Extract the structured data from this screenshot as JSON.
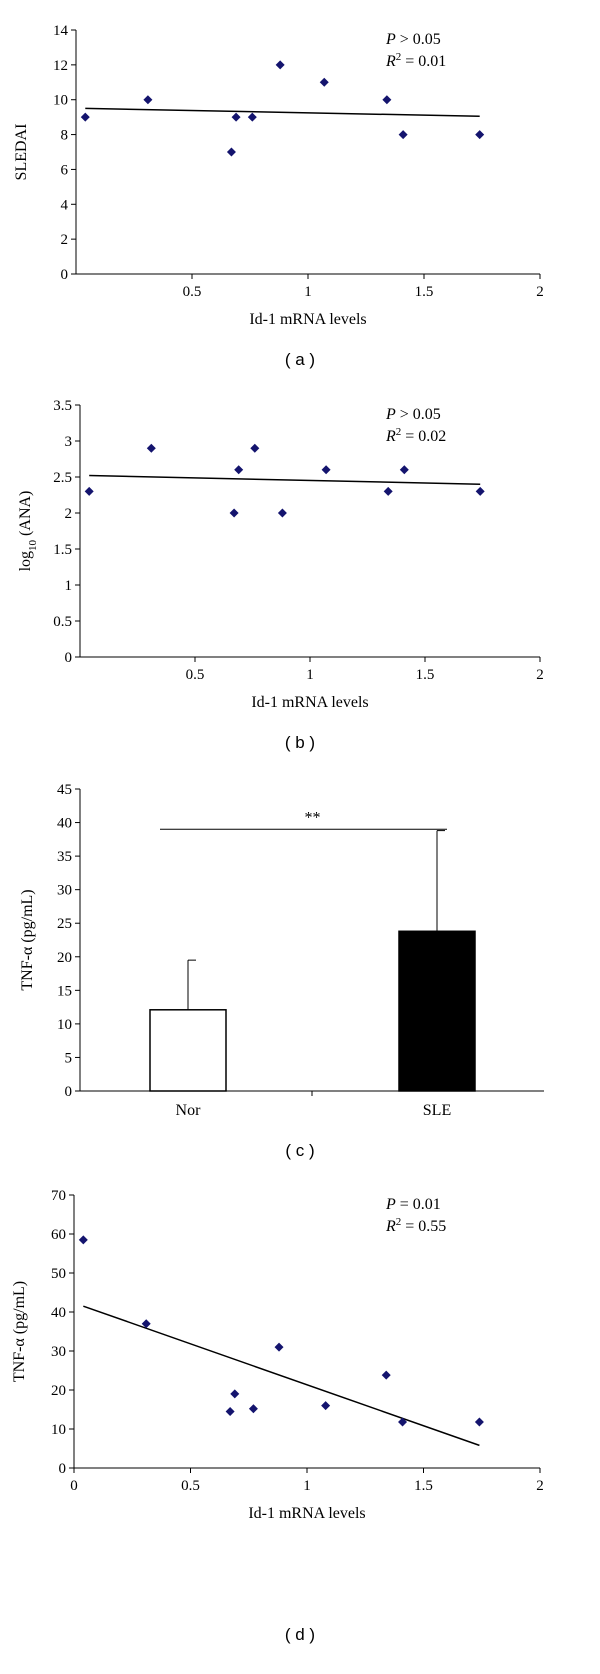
{
  "chart_data": [
    {
      "id": "a",
      "type": "scatter",
      "subcaption": "( a )",
      "xlabel": "Id-1 mRNA levels",
      "ylabel": "SLEDAI",
      "xlim": [
        0,
        2
      ],
      "ylim": [
        0,
        14
      ],
      "xticks": [
        "0.5",
        "1",
        "1.5",
        "2"
      ],
      "yticks": [
        "0",
        "2",
        "4",
        "6",
        "8",
        "10",
        "12",
        "14"
      ],
      "points": [
        {
          "x": 0.04,
          "y": 9
        },
        {
          "x": 0.31,
          "y": 10
        },
        {
          "x": 0.67,
          "y": 7
        },
        {
          "x": 0.69,
          "y": 9
        },
        {
          "x": 0.76,
          "y": 9
        },
        {
          "x": 0.88,
          "y": 12
        },
        {
          "x": 1.07,
          "y": 11
        },
        {
          "x": 1.34,
          "y": 10
        },
        {
          "x": 1.41,
          "y": 8
        },
        {
          "x": 1.74,
          "y": 8
        }
      ],
      "fit": {
        "x": [
          0.04,
          1.74
        ],
        "y": [
          9.5,
          9.05
        ]
      },
      "stats": {
        "p_label": "P",
        "p_text": "> 0.05",
        "r2_label": "R",
        "r2_sup": "2",
        "r2_text": "= 0.01"
      }
    },
    {
      "id": "b",
      "type": "scatter",
      "subcaption": "( b )",
      "xlabel": "Id-1 mRNA levels",
      "ylabel_main": "log",
      "ylabel_sub": "10",
      "ylabel_rest": " (ANA)",
      "xlim": [
        0,
        2
      ],
      "ylim": [
        0,
        3.5
      ],
      "xticks": [
        "0.5",
        "1",
        "1.5",
        "2"
      ],
      "yticks": [
        "0",
        "0.5",
        "1",
        "1.5",
        "2",
        "2.5",
        "3",
        "3.5"
      ],
      "points": [
        {
          "x": 0.04,
          "y": 2.3
        },
        {
          "x": 0.31,
          "y": 2.9
        },
        {
          "x": 0.67,
          "y": 2.0
        },
        {
          "x": 0.69,
          "y": 2.6
        },
        {
          "x": 0.76,
          "y": 2.9
        },
        {
          "x": 0.88,
          "y": 2.0
        },
        {
          "x": 1.07,
          "y": 2.6
        },
        {
          "x": 1.34,
          "y": 2.3
        },
        {
          "x": 1.41,
          "y": 2.6
        },
        {
          "x": 1.74,
          "y": 2.3
        }
      ],
      "fit": {
        "x": [
          0.04,
          1.74
        ],
        "y": [
          2.52,
          2.4
        ]
      },
      "stats": {
        "p_label": "P",
        "p_text": "> 0.05",
        "r2_label": "R",
        "r2_sup": "2",
        "r2_text": "= 0.02"
      }
    },
    {
      "id": "c",
      "type": "bar",
      "subcaption": "( c )",
      "ylabel": "TNF-α (pg/mL)",
      "ylim": [
        0,
        45
      ],
      "yticks": [
        "0",
        "5",
        "10",
        "15",
        "20",
        "25",
        "30",
        "35",
        "40",
        "45"
      ],
      "categories": [
        "Nor",
        "SLE"
      ],
      "values": [
        12.1,
        23.8
      ],
      "errors": [
        7.4,
        15.0
      ],
      "colors": [
        "#ffffff",
        "#000000"
      ],
      "significance": {
        "label": "**",
        "y": 39
      }
    },
    {
      "id": "d",
      "type": "scatter",
      "subcaption": "( d )",
      "xlabel": "Id-1 mRNA levels",
      "ylabel": "TNF-α (pg/mL)",
      "xlim": [
        0,
        2
      ],
      "ylim": [
        0,
        70
      ],
      "xticks": [
        "0",
        "0.5",
        "1",
        "1.5",
        "2"
      ],
      "yticks": [
        "0",
        "10",
        "20",
        "30",
        "40",
        "50",
        "60",
        "70"
      ],
      "points": [
        {
          "x": 0.04,
          "y": 58.5
        },
        {
          "x": 0.31,
          "y": 37
        },
        {
          "x": 0.67,
          "y": 14.5
        },
        {
          "x": 0.69,
          "y": 19
        },
        {
          "x": 0.77,
          "y": 15.2
        },
        {
          "x": 0.88,
          "y": 31
        },
        {
          "x": 1.08,
          "y": 16
        },
        {
          "x": 1.34,
          "y": 23.8
        },
        {
          "x": 1.41,
          "y": 11.8
        },
        {
          "x": 1.74,
          "y": 11.8
        }
      ],
      "fit": {
        "x": [
          0.04,
          1.74
        ],
        "y": [
          41.5,
          5.8
        ]
      },
      "stats": {
        "p_label": "P",
        "p_text": "= 0.01",
        "r2_label": "R",
        "r2_sup": "2",
        "r2_text": "= 0.55"
      }
    }
  ]
}
